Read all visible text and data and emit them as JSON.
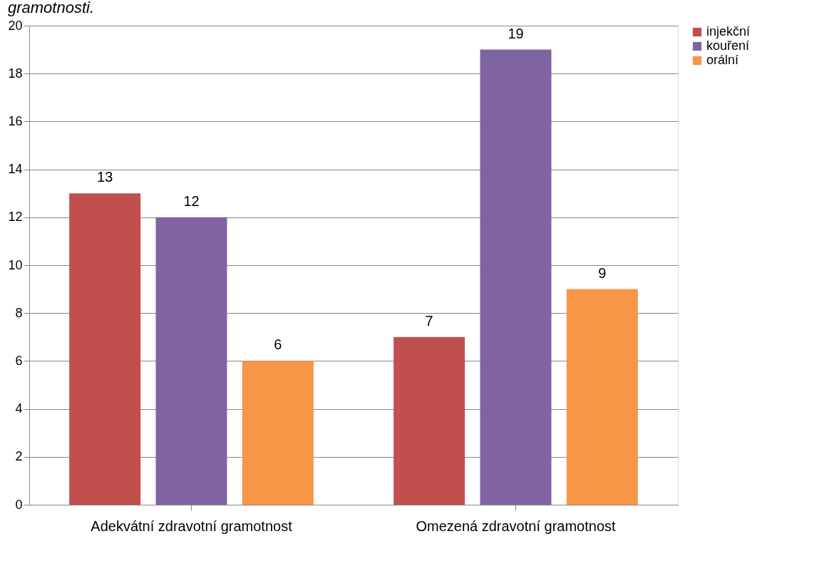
{
  "chart_data": {
    "type": "bar",
    "title": "gramotnosti.",
    "categories": [
      "Adekvátní zdravotní gramotnost",
      "Omezená zdravotní gramotnost"
    ],
    "series": [
      {
        "name": "injekční",
        "color": "#c0504d",
        "values": [
          13,
          7
        ]
      },
      {
        "name": "kouření",
        "color": "#8064a2",
        "values": [
          12,
          19
        ]
      },
      {
        "name": "orální",
        "color": "#f79646",
        "values": [
          6,
          9
        ]
      }
    ],
    "ylim": [
      0,
      20
    ],
    "yticks": [
      0,
      2,
      4,
      6,
      8,
      10,
      12,
      14,
      16,
      18,
      20
    ],
    "grid": "y",
    "legend": "right",
    "data_labels": true
  }
}
